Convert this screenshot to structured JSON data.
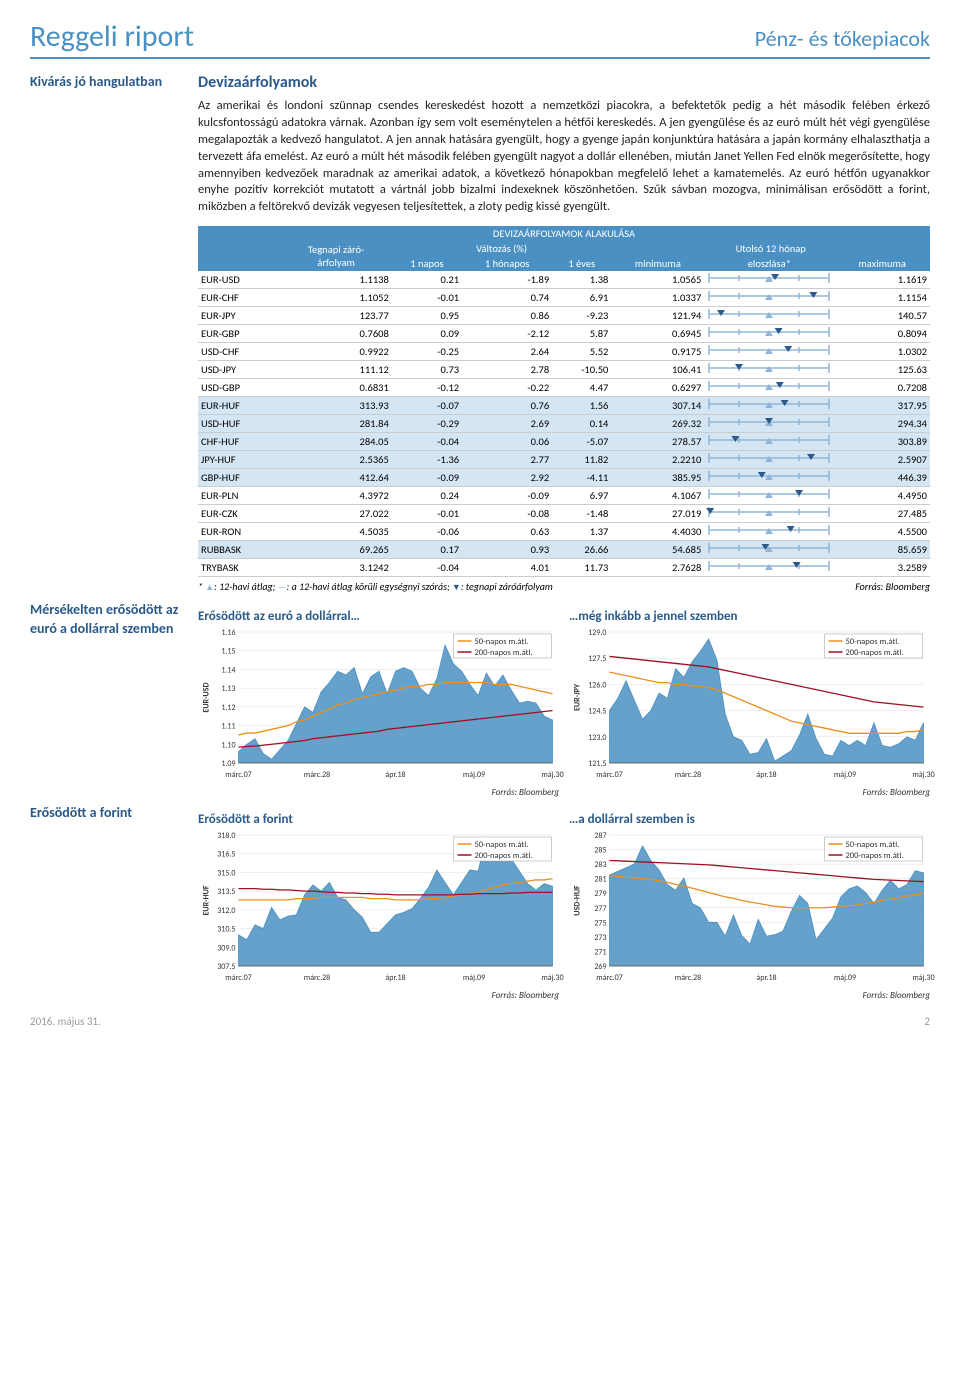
{
  "header": {
    "left": "Reggeli riport",
    "right": "Pénz- és tőkepiacok"
  },
  "sidebar": {
    "note1": "Kivárás jó hangulatban",
    "note2": "Mérsékelten erősödött az euró a dollárral szemben",
    "note3": "Erősödött a forint"
  },
  "section_title": "Devizaárfolyamok",
  "body_text": "Az amerikai és londoni szünnap csendes kereskedést hozott a nemzetközi piacokra, a befektetők pedig a hét második felében érkező kulcsfontosságú adatokra várnak. Azonban így sem volt eseménytelen a hétfői kereskedés. A jen gyengülése és az euró múlt hét végi gyengülése megalapozták a kedvező hangulatot. A jen annak hatására gyengült, hogy a gyenge japán konjunktúra hatására a japán kormány elhalaszthatja a tervezett áfa emelést. Az euró a múlt hét második felében gyengült nagyot a dollár ellenében, miután Janet Yellen Fed elnök megerősítette, hogy amennyiben kedvezőek maradnak az amerikai adatok, a következő hónapokban megfelelő lehet a kamatemelés. Az euró hétfőn ugyanakkor enyhe pozitív korrekciót mutatott a vártnál jobb bizalmi indexeknek köszönhetően. Szűk sávban mozogva, minimálisan erősödött a forint, miközben a feltörekvő devizák vegyesen teljesítettek, a zloty pedig kissé gyengült.",
  "table": {
    "banner": "DEVIZAÁRFOLYAMOK ALAKULÁSA",
    "headers": {
      "close": "Tegnapi záró-\nárfolyam",
      "change": "Változás (%)",
      "last12": "Utolsó 12 hónap",
      "c1": "1 napos",
      "c2": "1 hónapos",
      "c3": "1 éves",
      "min": "minimuma",
      "dist": "eloszlása*",
      "max": "maximuma"
    },
    "rows": [
      {
        "n": "EUR-USD",
        "v": [
          "1.1138",
          "0.21",
          "-1.89",
          "1.38",
          "1.0565",
          "",
          "1.1619"
        ],
        "hl": false,
        "pos": 0.55
      },
      {
        "n": "EUR-CHF",
        "v": [
          "1.1052",
          "-0.01",
          "0.74",
          "6.91",
          "1.0337",
          "",
          "1.1154"
        ],
        "hl": false,
        "pos": 0.87
      },
      {
        "n": "EUR-JPY",
        "v": [
          "123.77",
          "0.95",
          "0.86",
          "-9.23",
          "121.94",
          "",
          "140.57"
        ],
        "hl": false,
        "pos": 0.1
      },
      {
        "n": "EUR-GBP",
        "v": [
          "0.7608",
          "0.09",
          "-2.12",
          "5.87",
          "0.6945",
          "",
          "0.8094"
        ],
        "hl": false,
        "pos": 0.58
      },
      {
        "n": "USD-CHF",
        "v": [
          "0.9922",
          "-0.25",
          "2.64",
          "5.52",
          "0.9175",
          "",
          "1.0302"
        ],
        "hl": false,
        "pos": 0.66
      },
      {
        "n": "USD-JPY",
        "v": [
          "111.12",
          "0.73",
          "2.78",
          "-10.50",
          "106.41",
          "",
          "125.63"
        ],
        "hl": false,
        "pos": 0.25
      },
      {
        "n": "USD-GBP",
        "v": [
          "0.6831",
          "-0.12",
          "-0.22",
          "4.47",
          "0.6297",
          "",
          "0.7208"
        ],
        "hl": false,
        "pos": 0.59
      },
      {
        "n": "EUR-HUF",
        "v": [
          "313.93",
          "-0.07",
          "0.76",
          "1.56",
          "307.14",
          "",
          "317.95"
        ],
        "hl": true,
        "pos": 0.63
      },
      {
        "n": "USD-HUF",
        "v": [
          "281.84",
          "-0.29",
          "2.69",
          "0.14",
          "269.32",
          "",
          "294.34"
        ],
        "hl": true,
        "pos": 0.5
      },
      {
        "n": "CHF-HUF",
        "v": [
          "284.05",
          "-0.04",
          "0.06",
          "-5.07",
          "278.57",
          "",
          "303.89"
        ],
        "hl": true,
        "pos": 0.22
      },
      {
        "n": "JPY-HUF",
        "v": [
          "2.5365",
          "-1.36",
          "2.77",
          "11.82",
          "2.2210",
          "",
          "2.5907"
        ],
        "hl": true,
        "pos": 0.85
      },
      {
        "n": "GBP-HUF",
        "v": [
          "412.64",
          "-0.09",
          "2.92",
          "-4.11",
          "385.95",
          "",
          "446.39"
        ],
        "hl": true,
        "pos": 0.44
      },
      {
        "n": "EUR-PLN",
        "v": [
          "4.3972",
          "0.24",
          "-0.09",
          "6.97",
          "4.1067",
          "",
          "4.4950"
        ],
        "hl": false,
        "pos": 0.75
      },
      {
        "n": "EUR-CZK",
        "v": [
          "27.022",
          "-0.01",
          "-0.08",
          "-1.48",
          "27.019",
          "",
          "27.485"
        ],
        "hl": false,
        "pos": 0.01
      },
      {
        "n": "EUR-RON",
        "v": [
          "4.5035",
          "-0.06",
          "0.63",
          "1.37",
          "4.4030",
          "",
          "4.5500"
        ],
        "hl": false,
        "pos": 0.68
      },
      {
        "n": "RUBBASK",
        "v": [
          "69.265",
          "0.17",
          "0.93",
          "26.66",
          "54.685",
          "",
          "85.659"
        ],
        "hl": true,
        "pos": 0.47
      },
      {
        "n": "TRYBASK",
        "v": [
          "3.1242",
          "-0.04",
          "4.01",
          "11.73",
          "2.7628",
          "",
          "3.2589"
        ],
        "hl": false,
        "pos": 0.73
      }
    ],
    "footnote_left_parts": [
      "* ",
      ": 12-havi átlag; ",
      ": a 12-havi átlag körüli egységnyi szórás; ",
      ": tegnapi záróárfolyam"
    ],
    "footnote_right": "Forrás: Bloomberg"
  },
  "charts": {
    "legend50": "50-napos m.átl.",
    "legend200": "200-napos m.átl.",
    "source": "Forrás: Bloomberg",
    "xticks": [
      "márc.07",
      "márc.28",
      "ápr.18",
      "máj.09",
      "máj.30"
    ],
    "c1": {
      "title": "Erősödött az euró a dollárral…",
      "ylabel": "EUR-USD",
      "yticks": [
        "1.09",
        "1.10",
        "1.11",
        "1.12",
        "1.13",
        "1.14",
        "1.15",
        "1.16"
      ],
      "ylim": [
        1.09,
        1.16
      ],
      "area": [
        1.096,
        1.1,
        1.103,
        1.095,
        1.092,
        1.097,
        1.102,
        1.111,
        1.12,
        1.117,
        1.128,
        1.133,
        1.139,
        1.137,
        1.141,
        1.127,
        1.136,
        1.139,
        1.127,
        1.139,
        1.141,
        1.139,
        1.13,
        1.126,
        1.135,
        1.153,
        1.143,
        1.139,
        1.132,
        1.126,
        1.138,
        1.131,
        1.137,
        1.129,
        1.122,
        1.123,
        1.122,
        1.115,
        1.113
      ],
      "ma50": [
        1.105,
        1.106,
        1.106,
        1.107,
        1.108,
        1.109,
        1.11,
        1.112,
        1.113,
        1.115,
        1.117,
        1.119,
        1.121,
        1.122,
        1.124,
        1.125,
        1.126,
        1.127,
        1.128,
        1.129,
        1.13,
        1.131,
        1.131,
        1.132,
        1.132,
        1.133,
        1.133,
        1.133,
        1.133,
        1.133,
        1.133,
        1.132,
        1.132,
        1.132,
        1.131,
        1.13,
        1.129,
        1.128,
        1.127
      ],
      "ma200": [
        1.0985,
        1.0988,
        1.099,
        1.0995,
        1.1,
        1.1005,
        1.101,
        1.1015,
        1.102,
        1.103,
        1.1035,
        1.104,
        1.1045,
        1.105,
        1.1055,
        1.106,
        1.1065,
        1.107,
        1.108,
        1.1085,
        1.109,
        1.1095,
        1.11,
        1.1105,
        1.111,
        1.1115,
        1.112,
        1.1125,
        1.113,
        1.1135,
        1.114,
        1.1145,
        1.115,
        1.1155,
        1.116,
        1.1165,
        1.117,
        1.1175,
        1.118
      ],
      "colors": {
        "area": "#4a90c2",
        "ma50": "#e89020",
        "ma200": "#a01020"
      }
    },
    "c2": {
      "title": "…még inkább a jennel szemben",
      "ylabel": "EUR-JPY",
      "yticks": [
        "121.5",
        "123.0",
        "124.5",
        "126.0",
        "127.5",
        "129.0"
      ],
      "ylim": [
        121.5,
        129.0
      ],
      "area": [
        124.5,
        125.2,
        126.2,
        125.1,
        124.0,
        124.5,
        125.5,
        125.2,
        126.9,
        126.4,
        127.3,
        127.9,
        128.6,
        127.4,
        124.3,
        123.0,
        122.8,
        122.0,
        122.1,
        122.9,
        121.6,
        121.9,
        122.2,
        123.1,
        124.3,
        122.9,
        122.0,
        121.9,
        122.8,
        122.5,
        122.8,
        122.5,
        123.8,
        122.5,
        122.4,
        122.6,
        123.0,
        122.8,
        123.8
      ],
      "ma50": [
        126.7,
        126.6,
        126.5,
        126.4,
        126.3,
        126.2,
        126.1,
        126.1,
        126.0,
        126.0,
        125.9,
        125.9,
        125.8,
        125.7,
        125.5,
        125.3,
        125.1,
        124.9,
        124.7,
        124.5,
        124.3,
        124.1,
        123.9,
        123.8,
        123.7,
        123.6,
        123.5,
        123.4,
        123.3,
        123.2,
        123.2,
        123.2,
        123.2,
        123.2,
        123.2,
        123.2,
        123.3,
        123.3,
        123.4
      ],
      "ma200": [
        127.6,
        127.55,
        127.5,
        127.45,
        127.4,
        127.35,
        127.3,
        127.25,
        127.2,
        127.15,
        127.1,
        127.05,
        127.0,
        126.9,
        126.8,
        126.7,
        126.6,
        126.5,
        126.4,
        126.3,
        126.2,
        126.1,
        126.0,
        125.9,
        125.8,
        125.7,
        125.6,
        125.5,
        125.4,
        125.3,
        125.2,
        125.1,
        125.0,
        124.95,
        124.9,
        124.85,
        124.8,
        124.75,
        124.7
      ],
      "colors": {
        "area": "#4a90c2",
        "ma50": "#e89020",
        "ma200": "#a01020"
      }
    },
    "c3": {
      "title": "Erősödött a forint",
      "ylabel": "EUR-HUF",
      "yticks": [
        "307.5",
        "309.0",
        "310.5",
        "312.0",
        "313.5",
        "315.0",
        "316.5",
        "318.0"
      ],
      "ylim": [
        307.5,
        318.0
      ],
      "area": [
        310.0,
        309.6,
        310.8,
        310.5,
        312.2,
        311.2,
        311.5,
        311.6,
        313.2,
        314.0,
        313.5,
        314.2,
        313.0,
        312.8,
        312.0,
        311.4,
        310.2,
        310.2,
        310.9,
        311.6,
        311.8,
        312.1,
        312.9,
        313.8,
        315.2,
        314.2,
        313.2,
        314.2,
        315.2,
        315.1,
        317.8,
        316.8,
        316.0,
        316.1,
        315.1,
        314.1,
        313.6,
        314.1,
        313.9
      ],
      "ma50": [
        312.8,
        312.8,
        312.8,
        312.8,
        312.8,
        312.8,
        312.8,
        312.9,
        312.9,
        312.9,
        313.0,
        313.0,
        313.0,
        313.0,
        313.0,
        313.0,
        312.9,
        312.9,
        312.9,
        312.8,
        312.8,
        312.8,
        312.8,
        312.9,
        312.9,
        313.0,
        313.1,
        313.2,
        313.3,
        313.4,
        313.6,
        313.8,
        314.0,
        314.1,
        314.2,
        314.3,
        314.4,
        314.4,
        314.5
      ],
      "ma200": [
        313.7,
        313.7,
        313.7,
        313.65,
        313.65,
        313.6,
        313.6,
        313.55,
        313.5,
        313.5,
        313.45,
        313.4,
        313.4,
        313.35,
        313.35,
        313.3,
        313.3,
        313.25,
        313.25,
        313.2,
        313.2,
        313.2,
        313.2,
        313.2,
        313.2,
        313.2,
        313.2,
        313.25,
        313.25,
        313.3,
        313.3,
        313.3,
        313.3,
        313.35,
        313.35,
        313.4,
        313.4,
        313.4,
        313.4
      ],
      "colors": {
        "area": "#4a90c2",
        "ma50": "#e89020",
        "ma200": "#a01020"
      }
    },
    "c4": {
      "title": "…a dollárral szemben is",
      "ylabel": "USD-HUF",
      "yticks": [
        "269",
        "271",
        "273",
        "275",
        "277",
        "279",
        "281",
        "283",
        "285",
        "287"
      ],
      "ylim": [
        269,
        287
      ],
      "area": [
        281.5,
        282.0,
        282.5,
        283.0,
        285.5,
        283.5,
        282.2,
        280.2,
        279.4,
        281.1,
        277.6,
        277.0,
        275.0,
        275.0,
        273.1,
        276.0,
        273.2,
        272.0,
        275.4,
        273.1,
        273.3,
        273.8,
        276.5,
        278.7,
        277.6,
        272.6,
        274.1,
        275.6,
        278.5,
        279.6,
        280.0,
        279.1,
        277.6,
        279.4,
        280.8,
        279.6,
        280.2,
        282.1,
        281.8
      ],
      "ma50": [
        281.5,
        281.3,
        281.2,
        281.1,
        281.0,
        280.9,
        280.7,
        280.5,
        280.2,
        280.0,
        279.7,
        279.4,
        279.1,
        278.8,
        278.5,
        278.3,
        278.0,
        277.8,
        277.6,
        277.4,
        277.2,
        277.1,
        277.0,
        277.0,
        277.0,
        277.0,
        277.0,
        277.1,
        277.2,
        277.3,
        277.4,
        277.6,
        277.8,
        278.0,
        278.2,
        278.4,
        278.6,
        278.8,
        279.0
      ],
      "ma200": [
        283.5,
        283.45,
        283.4,
        283.35,
        283.3,
        283.25,
        283.2,
        283.15,
        283.1,
        283.05,
        283.0,
        282.95,
        282.9,
        282.8,
        282.7,
        282.6,
        282.5,
        282.4,
        282.3,
        282.2,
        282.1,
        282.0,
        281.9,
        281.8,
        281.7,
        281.6,
        281.5,
        281.4,
        281.3,
        281.2,
        281.1,
        281.0,
        280.9,
        280.85,
        280.8,
        280.75,
        280.7,
        280.65,
        280.6
      ],
      "colors": {
        "area": "#4a90c2",
        "ma50": "#e89020",
        "ma200": "#a01020"
      }
    }
  },
  "footer": {
    "date": "2016. május 31.",
    "page": "2"
  }
}
